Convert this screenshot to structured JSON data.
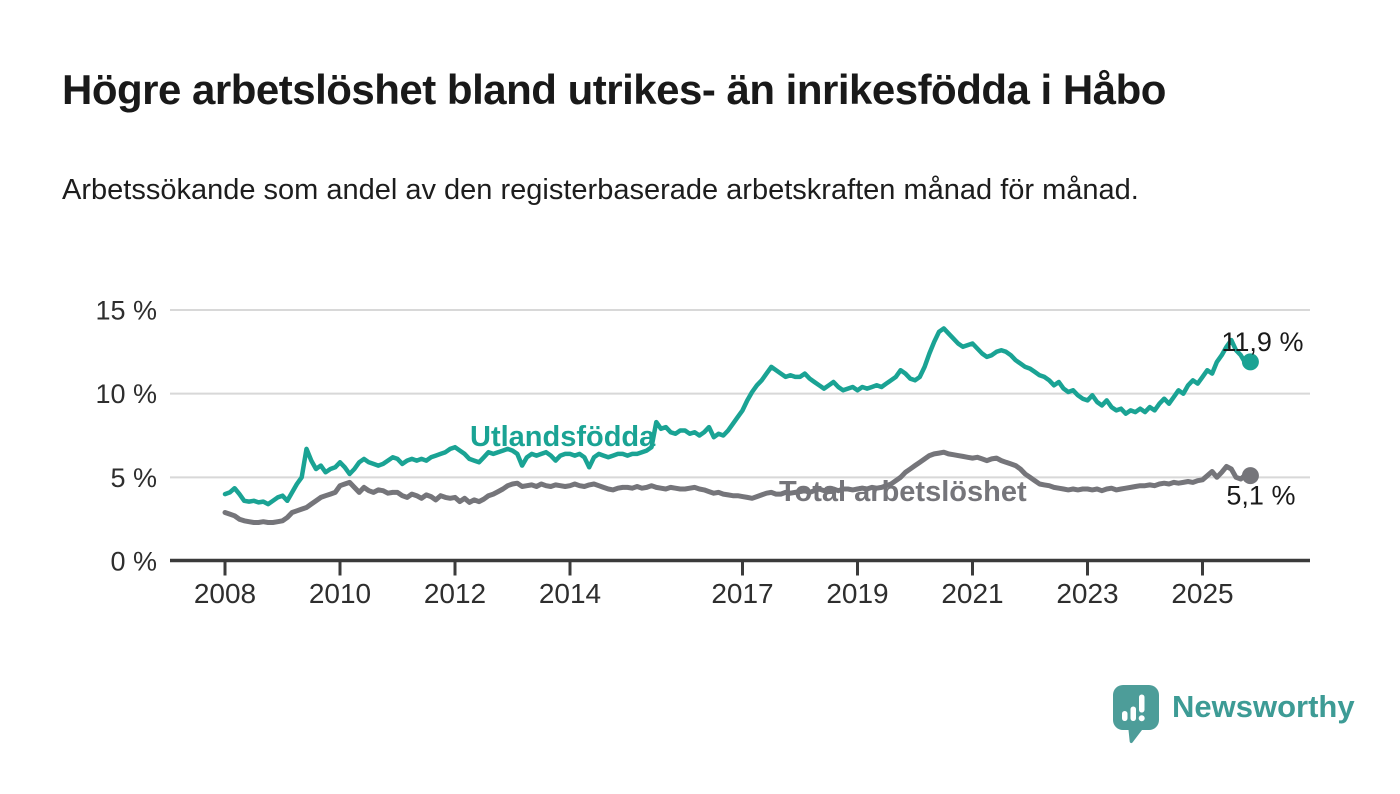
{
  "header": {
    "title": "Högre arbetslöshet bland utrikes- än inrikesfödda i Håbo",
    "subtitle": "Arbetssökande som andel av den registerbaserade arbetskraften månad för månad."
  },
  "chart_data": {
    "type": "line",
    "unit": "%",
    "start_month": "2008-01",
    "end_month": "2025-11",
    "months_per_value": 1,
    "grid": true,
    "legend_position": "inline-labels",
    "y_axis": {
      "ticks": [
        0,
        5,
        10,
        15
      ],
      "tick_labels": [
        "0 %",
        "5 %",
        "10 %",
        "15 %"
      ],
      "range": [
        0,
        15.5
      ]
    },
    "x_axis": {
      "tick_years": [
        2008,
        2010,
        2012,
        2014,
        2017,
        2019,
        2021,
        2023,
        2025
      ],
      "tick_labels": [
        "2008",
        "2010",
        "2012",
        "2014",
        "2017",
        "2019",
        "2021",
        "2023",
        "2025"
      ]
    },
    "series": [
      {
        "name": "Utlandsfödda",
        "color": "#1aa394",
        "end_value": 11.9,
        "end_label": "11,9 %",
        "values": [
          4.0,
          4.1,
          4.35,
          4.0,
          3.6,
          3.55,
          3.6,
          3.5,
          3.55,
          3.4,
          3.6,
          3.8,
          3.9,
          3.6,
          4.1,
          4.6,
          5.0,
          6.7,
          6.0,
          5.5,
          5.7,
          5.3,
          5.5,
          5.6,
          5.9,
          5.6,
          5.2,
          5.5,
          5.9,
          6.1,
          5.9,
          5.8,
          5.7,
          5.8,
          6.0,
          6.2,
          6.1,
          5.8,
          6.0,
          6.1,
          6.0,
          6.1,
          6.0,
          6.2,
          6.3,
          6.4,
          6.5,
          6.7,
          6.8,
          6.6,
          6.4,
          6.1,
          6.0,
          5.9,
          6.2,
          6.5,
          6.4,
          6.5,
          6.6,
          6.7,
          6.6,
          6.4,
          5.7,
          6.2,
          6.4,
          6.3,
          6.4,
          6.5,
          6.3,
          6.0,
          6.3,
          6.4,
          6.4,
          6.3,
          6.4,
          6.2,
          5.6,
          6.2,
          6.4,
          6.3,
          6.2,
          6.3,
          6.4,
          6.4,
          6.3,
          6.4,
          6.4,
          6.5,
          6.6,
          6.8,
          8.3,
          7.9,
          8.0,
          7.7,
          7.6,
          7.8,
          7.8,
          7.6,
          7.7,
          7.5,
          7.7,
          8.0,
          7.4,
          7.6,
          7.5,
          7.8,
          8.2,
          8.6,
          9.0,
          9.6,
          10.1,
          10.5,
          10.8,
          11.2,
          11.6,
          11.4,
          11.2,
          11.0,
          11.1,
          11.0,
          11.0,
          11.2,
          10.9,
          10.7,
          10.5,
          10.3,
          10.5,
          10.7,
          10.4,
          10.2,
          10.3,
          10.4,
          10.2,
          10.4,
          10.3,
          10.4,
          10.5,
          10.4,
          10.6,
          10.8,
          11.0,
          11.4,
          11.2,
          10.9,
          10.8,
          11.0,
          11.6,
          12.4,
          13.1,
          13.7,
          13.9,
          13.6,
          13.3,
          13.0,
          12.8,
          12.9,
          13.0,
          12.7,
          12.4,
          12.2,
          12.3,
          12.5,
          12.6,
          12.5,
          12.3,
          12.0,
          11.8,
          11.6,
          11.5,
          11.3,
          11.1,
          11.0,
          10.8,
          10.5,
          10.7,
          10.3,
          10.1,
          10.2,
          9.9,
          9.7,
          9.6,
          9.9,
          9.5,
          9.3,
          9.6,
          9.2,
          9.0,
          9.1,
          8.8,
          9.0,
          8.9,
          9.1,
          8.9,
          9.2,
          9.0,
          9.4,
          9.7,
          9.4,
          9.8,
          10.2,
          10.0,
          10.5,
          10.8,
          10.6,
          11.0,
          11.4,
          11.2,
          11.9,
          12.3,
          12.8,
          13.2,
          12.6,
          12.3,
          11.8,
          11.9
        ]
      },
      {
        "name": "Total arbetslöshet",
        "color": "#75757a",
        "end_value": 5.1,
        "end_label": "5,1 %",
        "values": [
          2.9,
          2.8,
          2.7,
          2.5,
          2.4,
          2.35,
          2.3,
          2.3,
          2.35,
          2.3,
          2.3,
          2.35,
          2.4,
          2.6,
          2.9,
          3.0,
          3.1,
          3.2,
          3.4,
          3.6,
          3.8,
          3.9,
          4.0,
          4.1,
          4.5,
          4.6,
          4.7,
          4.4,
          4.1,
          4.4,
          4.2,
          4.1,
          4.25,
          4.2,
          4.05,
          4.1,
          4.1,
          3.9,
          3.8,
          4.0,
          3.9,
          3.75,
          3.95,
          3.85,
          3.65,
          3.9,
          3.8,
          3.75,
          3.8,
          3.55,
          3.75,
          3.5,
          3.65,
          3.55,
          3.7,
          3.9,
          4.0,
          4.15,
          4.3,
          4.5,
          4.6,
          4.65,
          4.45,
          4.5,
          4.55,
          4.45,
          4.6,
          4.5,
          4.45,
          4.55,
          4.5,
          4.45,
          4.5,
          4.6,
          4.5,
          4.45,
          4.55,
          4.6,
          4.5,
          4.4,
          4.3,
          4.25,
          4.35,
          4.4,
          4.4,
          4.35,
          4.45,
          4.35,
          4.4,
          4.5,
          4.4,
          4.35,
          4.3,
          4.4,
          4.35,
          4.3,
          4.3,
          4.35,
          4.4,
          4.3,
          4.25,
          4.15,
          4.05,
          4.1,
          4.0,
          3.95,
          3.9,
          3.9,
          3.85,
          3.8,
          3.75,
          3.85,
          3.95,
          4.05,
          4.1,
          4.0,
          4.0,
          4.1,
          4.05,
          4.1,
          4.15,
          4.2,
          4.1,
          4.2,
          4.3,
          4.2,
          4.25,
          4.3,
          4.2,
          4.3,
          4.3,
          4.25,
          4.3,
          4.35,
          4.3,
          4.4,
          4.35,
          4.4,
          4.5,
          4.6,
          4.8,
          5.0,
          5.3,
          5.5,
          5.7,
          5.9,
          6.1,
          6.3,
          6.4,
          6.45,
          6.5,
          6.4,
          6.35,
          6.3,
          6.25,
          6.2,
          6.15,
          6.2,
          6.1,
          6.0,
          6.1,
          6.15,
          6.0,
          5.9,
          5.8,
          5.7,
          5.5,
          5.2,
          5.0,
          4.8,
          4.6,
          4.55,
          4.5,
          4.4,
          4.35,
          4.3,
          4.25,
          4.3,
          4.25,
          4.3,
          4.3,
          4.25,
          4.3,
          4.2,
          4.3,
          4.35,
          4.25,
          4.3,
          4.35,
          4.4,
          4.45,
          4.5,
          4.5,
          4.55,
          4.5,
          4.6,
          4.65,
          4.6,
          4.7,
          4.65,
          4.7,
          4.75,
          4.7,
          4.8,
          4.85,
          5.1,
          5.35,
          5.0,
          5.3,
          5.65,
          5.5,
          5.0,
          4.9,
          5.15,
          5.1
        ]
      }
    ]
  },
  "branding": {
    "logo_text": "Newsworthy",
    "logo_color": "#3d9b95",
    "icon": "newsworthy-speech-bubble-bar-chart-icon",
    "icon_color": "#4d9d99"
  },
  "colors": {
    "background": "#ffffff",
    "title_text": "#191919",
    "axis_text": "#2e2e2e",
    "gridline": "#d8d8d8",
    "axis_line": "#3b3b3b",
    "annotation_text": "#1a1a1a",
    "series_utlandsfodda": "#1aa394",
    "series_total": "#75757a"
  }
}
